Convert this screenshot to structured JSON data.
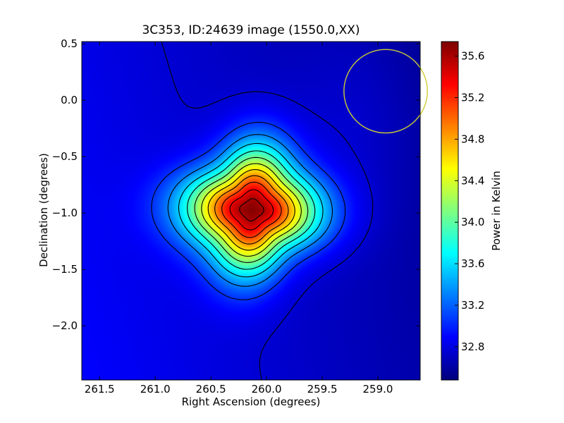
{
  "chart_data": {
    "type": "heatmap",
    "title": "3C353, ID:24639 image (1550.0,XX)",
    "xlabel": "Right Ascension (degrees)",
    "ylabel": "Declination (degrees)",
    "colorbar_label": "Power in Kelvin",
    "xlim": [
      261.66,
      258.62
    ],
    "ylim": [
      -2.48,
      0.52
    ],
    "x_ticks": [
      261.5,
      261.0,
      260.5,
      260.0,
      259.5,
      259.0
    ],
    "x_tick_labels": [
      "261.5",
      "261.0",
      "260.5",
      "260.0",
      "259.5",
      "259.0"
    ],
    "y_ticks": [
      0.5,
      0.0,
      -0.5,
      -1.0,
      -1.5,
      -2.0
    ],
    "y_tick_labels": [
      "0.5",
      "0.0",
      "−0.5",
      "−1.0",
      "−1.5",
      "−2.0"
    ],
    "colorbar_range": [
      32.48,
      35.74
    ],
    "colorbar_ticks": [
      32.8,
      33.2,
      33.6,
      34.0,
      34.4,
      34.8,
      35.2,
      35.6
    ],
    "colorbar_tick_labels": [
      "32.8",
      "33.2",
      "33.6",
      "34.0",
      "34.4",
      "34.8",
      "35.2",
      "35.6"
    ],
    "colormap": "jet",
    "peak": {
      "ra": 260.13,
      "dec": -0.97,
      "value": 35.74
    },
    "background_level": 32.75,
    "contour_levels": [
      32.75,
      33.04,
      33.3,
      33.56,
      33.82,
      34.08,
      34.34,
      34.6,
      34.86,
      35.12,
      35.38,
      35.6
    ],
    "beam_circle": {
      "ra": 258.93,
      "dec": 0.08,
      "radius_deg": 0.37,
      "color": "#cccc33"
    },
    "contour_color": "#000000"
  }
}
